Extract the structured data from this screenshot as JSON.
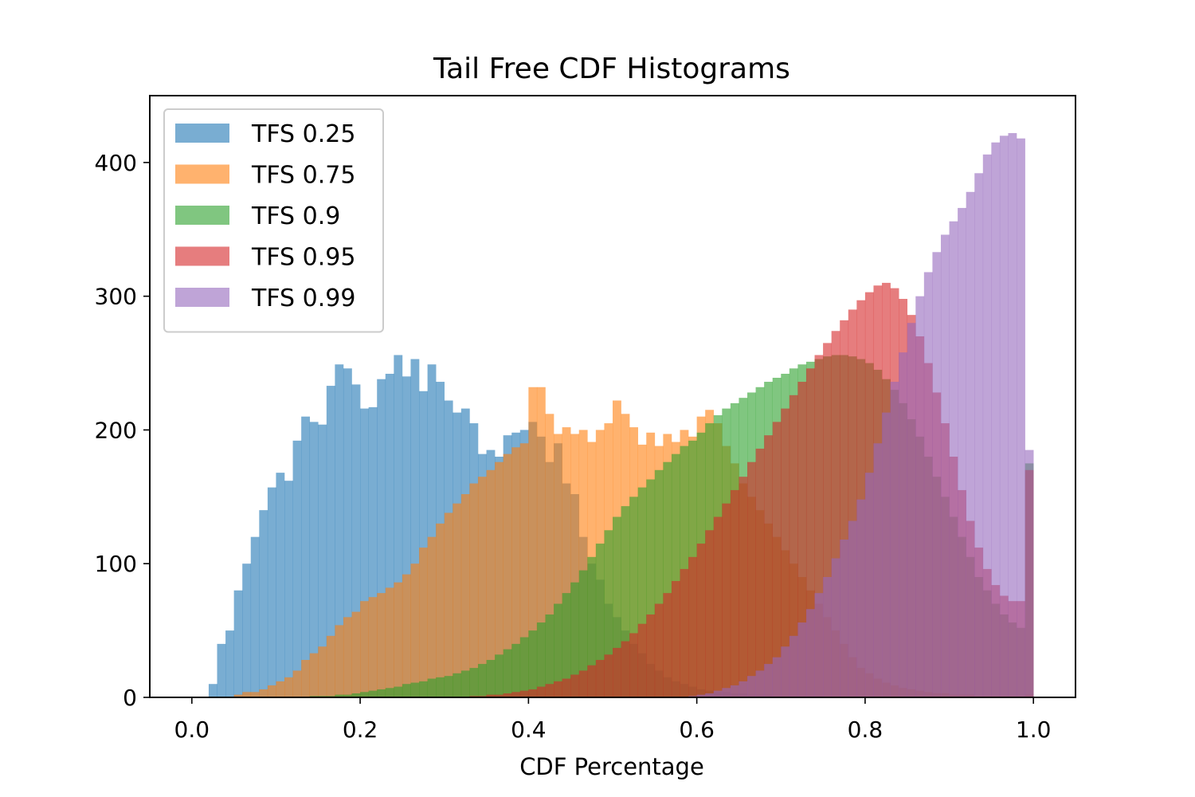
{
  "chart_data": {
    "type": "histogram",
    "title": "Tail Free CDF Histograms",
    "xlabel": "CDF Percentage",
    "ylabel": "",
    "xlim": [
      -0.05,
      1.05
    ],
    "ylim": [
      0,
      450
    ],
    "xticks": [
      0.0,
      0.2,
      0.4,
      0.6,
      0.8,
      1.0
    ],
    "xtick_labels": [
      "0.0",
      "0.2",
      "0.4",
      "0.6",
      "0.8",
      "1.0"
    ],
    "yticks": [
      0,
      100,
      200,
      300,
      400
    ],
    "ytick_labels": [
      "0",
      "100",
      "200",
      "300",
      "400"
    ],
    "bin_start": 0.0,
    "bin_width": 0.01,
    "grid": false,
    "legend_position": "upper left",
    "bar_opacity": 0.6,
    "series": [
      {
        "name": "TFS 0.25",
        "color": "#1f77b4",
        "counts": [
          0,
          0,
          10,
          40,
          50,
          80,
          100,
          120,
          140,
          157,
          168,
          162,
          192,
          210,
          206,
          204,
          233,
          249,
          246,
          234,
          216,
          217,
          238,
          242,
          256,
          240,
          253,
          229,
          249,
          236,
          222,
          213,
          216,
          205,
          182,
          185,
          180,
          196,
          198,
          200,
          206,
          195,
          176,
          190,
          160,
          152,
          120,
          100,
          88,
          70,
          60,
          50,
          40,
          33,
          25,
          20,
          15,
          12,
          10,
          8,
          6,
          5,
          4,
          4,
          3,
          3,
          2,
          2,
          2,
          1,
          1,
          1,
          1,
          1,
          1,
          0,
          0,
          0,
          0,
          0,
          0,
          0,
          0,
          0,
          0,
          0,
          0,
          0,
          0,
          0,
          0,
          0,
          0,
          0,
          0,
          0,
          0,
          0,
          0,
          0
        ]
      },
      {
        "name": "TFS 0.75",
        "color": "#ff7f0e",
        "counts": [
          0,
          0,
          0,
          0,
          0,
          2,
          4,
          4,
          6,
          9,
          12,
          15,
          20,
          28,
          33,
          38,
          46,
          54,
          60,
          64,
          72,
          75,
          78,
          82,
          86,
          92,
          100,
          112,
          120,
          130,
          138,
          145,
          152,
          160,
          165,
          170,
          176,
          182,
          187,
          190,
          232,
          232,
          212,
          197,
          202,
          197,
          200,
          191,
          200,
          205,
          222,
          212,
          202,
          189,
          198,
          188,
          197,
          191,
          200,
          195,
          210,
          215,
          205,
          188,
          175,
          160,
          150,
          140,
          130,
          120,
          110,
          100,
          90,
          80,
          70,
          60,
          50,
          40,
          30,
          22,
          18,
          14,
          11,
          9,
          7,
          6,
          5,
          4,
          3,
          3,
          2,
          2,
          2,
          1,
          1,
          1,
          1,
          1,
          1,
          2
        ]
      },
      {
        "name": "TFS 0.9",
        "color": "#2ca02c",
        "counts": [
          0,
          0,
          0,
          0,
          0,
          0,
          0,
          0,
          0,
          0,
          0,
          0,
          0,
          0,
          1,
          1,
          1,
          2,
          2,
          3,
          4,
          5,
          6,
          7,
          8,
          10,
          11,
          12,
          14,
          15,
          16,
          18,
          20,
          22,
          25,
          28,
          32,
          36,
          40,
          45,
          50,
          56,
          62,
          70,
          78,
          86,
          95,
          105,
          115,
          125,
          135,
          143,
          150,
          157,
          163,
          170,
          176,
          182,
          188,
          192,
          198,
          205,
          211,
          216,
          220,
          224,
          228,
          232,
          236,
          239,
          242,
          246,
          249,
          251,
          253,
          255,
          256,
          256,
          255,
          253,
          250,
          245,
          238,
          230,
          220,
          208,
          195,
          180,
          165,
          150,
          135,
          120,
          105,
          90,
          80,
          70,
          62,
          56,
          52,
          175
        ]
      },
      {
        "name": "TFS 0.95",
        "color": "#d62728",
        "counts": [
          0,
          0,
          0,
          0,
          0,
          0,
          0,
          0,
          0,
          0,
          0,
          0,
          0,
          0,
          0,
          0,
          0,
          0,
          0,
          0,
          0,
          0,
          0,
          0,
          0,
          0,
          0,
          0,
          0,
          0,
          0,
          0,
          0,
          1,
          1,
          2,
          2,
          3,
          4,
          5,
          6,
          8,
          10,
          12,
          14,
          17,
          20,
          24,
          28,
          32,
          37,
          42,
          48,
          55,
          62,
          70,
          78,
          87,
          96,
          105,
          115,
          125,
          135,
          145,
          155,
          165,
          176,
          186,
          196,
          206,
          216,
          226,
          236,
          246,
          256,
          265,
          274,
          282,
          290,
          297,
          303,
          308,
          310,
          306,
          298,
          286,
          270,
          250,
          228,
          205,
          180,
          155,
          132,
          112,
          96,
          84,
          76,
          72,
          72,
          170
        ]
      },
      {
        "name": "TFS 0.99",
        "color": "#9467bd",
        "counts": [
          0,
          0,
          0,
          0,
          0,
          0,
          0,
          0,
          0,
          0,
          0,
          0,
          0,
          0,
          0,
          0,
          0,
          0,
          0,
          0,
          0,
          0,
          0,
          0,
          0,
          0,
          0,
          0,
          0,
          0,
          0,
          0,
          0,
          0,
          0,
          0,
          0,
          0,
          0,
          0,
          0,
          0,
          0,
          0,
          0,
          0,
          0,
          0,
          0,
          0,
          0,
          0,
          0,
          0,
          0,
          0,
          0,
          0,
          0,
          1,
          2,
          3,
          5,
          7,
          9,
          12,
          16,
          20,
          25,
          30,
          38,
          46,
          56,
          66,
          78,
          90,
          104,
          118,
          132,
          148,
          168,
          190,
          213,
          236,
          258,
          280,
          300,
          318,
          333,
          346,
          356,
          366,
          378,
          392,
          406,
          415,
          420,
          422,
          418,
          185
        ]
      }
    ]
  }
}
